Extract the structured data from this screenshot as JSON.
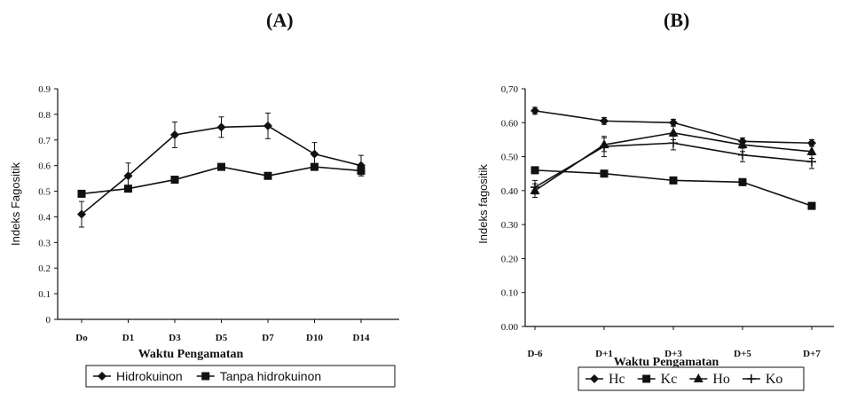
{
  "panels": {
    "a_label": "(A)",
    "b_label": "(B)"
  },
  "chart_data": [
    {
      "type": "line",
      "panel": "(A)",
      "categories": [
        "Do",
        "D1",
        "D3",
        "D5",
        "D7",
        "D10",
        "D14"
      ],
      "yticks": [
        "0",
        "0.1",
        "0.2",
        "0.3",
        "0.4",
        "0.5",
        "0.6",
        "0.7",
        "0.8",
        "0.9"
      ],
      "ylim": [
        0,
        0.9
      ],
      "xlabel": "Waktu Pengamatan",
      "ylabel": "Indeks Fagositik",
      "legend_position": "bottom",
      "series": [
        {
          "name": "Hidrokuinon",
          "marker": "diamond",
          "values": [
            0.41,
            0.56,
            0.72,
            0.75,
            0.755,
            0.645,
            0.6
          ],
          "errors": [
            0.05,
            0.05,
            0.05,
            0.04,
            0.05,
            0.045,
            0.04
          ]
        },
        {
          "name": "Tanpa hidrokuinon",
          "marker": "square",
          "values": [
            0.49,
            0.51,
            0.545,
            0.595,
            0.56,
            0.595,
            0.58
          ],
          "errors": [
            0.0,
            0.0,
            0.0,
            0.0,
            0.0,
            0.0,
            0.02
          ]
        }
      ]
    },
    {
      "type": "line",
      "panel": "(B)",
      "categories": [
        "D-6",
        "D+1",
        "D+3",
        "D+5",
        "D+7"
      ],
      "yticks": [
        "0.00",
        "0.10",
        "0.20",
        "0.30",
        "0.40",
        "0.50",
        "0.60",
        "0,70"
      ],
      "ylim": [
        0,
        0.7
      ],
      "xlabel": "Waktu Pengamatan",
      "ylabel": "Indeks fagositik",
      "legend_position": "bottom",
      "series": [
        {
          "name": "Hc",
          "marker": "diamond",
          "values": [
            0.635,
            0.605,
            0.6,
            0.545,
            0.54
          ],
          "errors": [
            0.01,
            0.01,
            0.01,
            0.01,
            0.01
          ]
        },
        {
          "name": "Kc",
          "marker": "square",
          "values": [
            0.46,
            0.45,
            0.43,
            0.425,
            0.355
          ],
          "errors": [
            0.01,
            0.01,
            0.01,
            0.01,
            0.01
          ]
        },
        {
          "name": "Ho",
          "marker": "triangle",
          "values": [
            0.4,
            0.535,
            0.57,
            0.535,
            0.515
          ],
          "errors": [
            0.02,
            0.02,
            0.02,
            0.02,
            0.02
          ]
        },
        {
          "name": "Ko",
          "marker": "cross",
          "values": [
            0.41,
            0.53,
            0.54,
            0.505,
            0.485
          ],
          "errors": [
            0.02,
            0.03,
            0.02,
            0.02,
            0.02
          ]
        }
      ]
    }
  ]
}
